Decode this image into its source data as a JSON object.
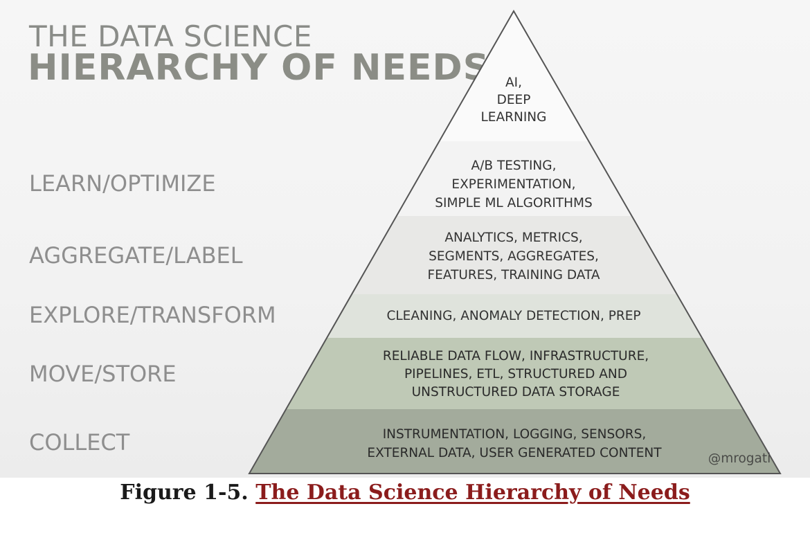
{
  "diagram": {
    "title_line1": "THE DATA SCIENCE",
    "title_line2": "HIERARCHY OF NEEDS",
    "stages": [
      "LEARN/OPTIMIZE",
      "AGGREGATE/LABEL",
      "EXPLORE/TRANSFORM",
      "MOVE/STORE",
      "COLLECT"
    ],
    "levels": [
      {
        "lines": [
          "AI,",
          "DEEP",
          "LEARNING"
        ],
        "color": "#fafafa"
      },
      {
        "lines": [
          "A/B TESTING,",
          "EXPERIMENTATION,",
          "SIMPLE ML ALGORITHMS"
        ],
        "color": "#f3f3f3"
      },
      {
        "lines": [
          "ANALYTICS, METRICS,",
          "SEGMENTS, AGGREGATES,",
          "FEATURES, TRAINING DATA"
        ],
        "color": "#e8e8e6"
      },
      {
        "lines": [
          "CLEANING, ANOMALY DETECTION, PREP"
        ],
        "color": "#dfe3dc"
      },
      {
        "lines": [
          "RELIABLE DATA FLOW, INFRASTRUCTURE,",
          "PIPELINES, ETL, STRUCTURED AND",
          "UNSTRUCTURED DATA STORAGE"
        ],
        "color": "#bfc9b6"
      },
      {
        "lines": [
          "INSTRUMENTATION, LOGGING, SENSORS,",
          "EXTERNAL DATA, USER GENERATED CONTENT"
        ],
        "color": "#a3ab9c"
      }
    ],
    "watermark": "@mrogati"
  },
  "caption": {
    "prefix": "Figure 1-5. ",
    "link_text": "The Data Science Hierarchy of Needs",
    "link_color": "#8b1c1c"
  }
}
